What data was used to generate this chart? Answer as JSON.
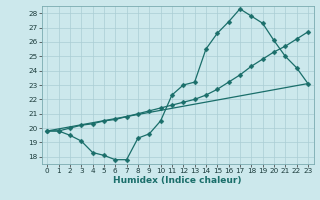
{
  "title": "",
  "xlabel": "Humidex (Indice chaleur)",
  "ylabel": "",
  "background_color": "#cce8ec",
  "grid_color": "#aacdd4",
  "line_color": "#1a6e6a",
  "xlim": [
    -0.5,
    23.5
  ],
  "ylim": [
    17.5,
    28.5
  ],
  "xticks": [
    0,
    1,
    2,
    3,
    4,
    5,
    6,
    7,
    8,
    9,
    10,
    11,
    12,
    13,
    14,
    15,
    16,
    17,
    18,
    19,
    20,
    21,
    22,
    23
  ],
  "yticks": [
    18,
    19,
    20,
    21,
    22,
    23,
    24,
    25,
    26,
    27,
    28
  ],
  "line1_x": [
    0,
    1,
    2,
    3,
    4,
    5,
    6,
    7,
    8,
    9,
    10,
    11,
    12,
    13,
    14,
    15,
    16,
    17,
    18,
    19,
    20,
    21,
    22,
    23
  ],
  "line1_y": [
    19.8,
    19.8,
    19.5,
    19.1,
    18.3,
    18.1,
    17.8,
    17.8,
    19.3,
    19.6,
    20.5,
    22.3,
    23.0,
    23.2,
    25.5,
    26.6,
    27.4,
    28.3,
    27.8,
    27.3,
    26.1,
    25.0,
    24.2,
    23.1
  ],
  "line2_x": [
    0,
    1,
    2,
    3,
    4,
    5,
    6,
    7,
    8,
    9,
    10,
    11,
    12,
    13,
    14,
    15,
    16,
    17,
    18,
    19,
    20,
    21,
    22,
    23
  ],
  "line2_y": [
    19.8,
    19.8,
    20.0,
    20.2,
    20.3,
    20.5,
    20.6,
    20.8,
    21.0,
    21.2,
    21.4,
    21.6,
    21.8,
    22.0,
    22.3,
    22.7,
    23.2,
    23.7,
    24.3,
    24.8,
    25.3,
    25.7,
    26.2,
    26.7
  ],
  "line3_x": [
    0,
    23
  ],
  "line3_y": [
    19.8,
    23.1
  ],
  "markersize": 2.5,
  "linewidth": 0.9,
  "tick_fontsize": 5.2,
  "label_fontsize": 6.5
}
